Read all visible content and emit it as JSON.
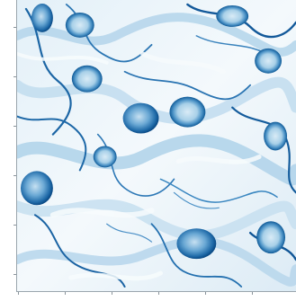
{
  "image": {
    "description": "",
    "palette": {
      "background": "#f3f8fb",
      "light": "#d7e8f3",
      "mid": "#8ec0de",
      "dark": "#2f79b5",
      "deep": "#0b4f8c",
      "axis": "#9aa5ad"
    }
  },
  "axes": {
    "y_ticks": [
      "",
      "",
      "",
      "",
      "",
      ""
    ],
    "x_ticks": [
      "",
      "",
      "",
      "",
      "",
      ""
    ]
  }
}
